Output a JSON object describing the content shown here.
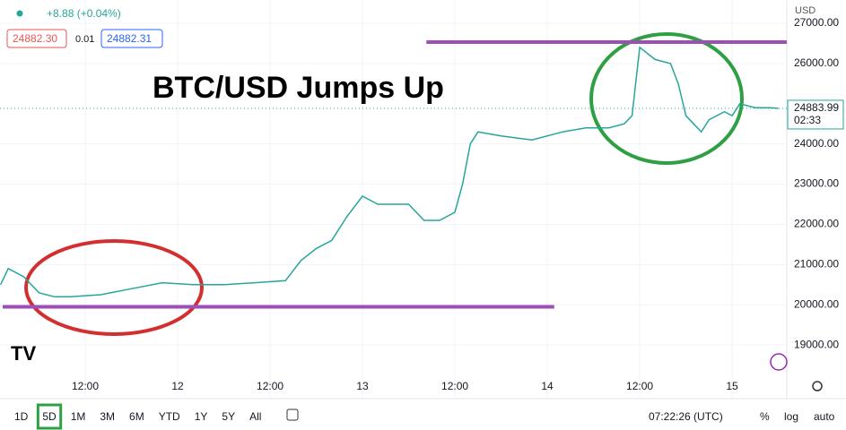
{
  "chart_data": {
    "type": "line",
    "annotation": "BTC/USD Jumps Up",
    "currency": "USD",
    "x": [
      1,
      2,
      4,
      6,
      8,
      10,
      14,
      18,
      22,
      26,
      30,
      34,
      38,
      40,
      42,
      44,
      46,
      48,
      50,
      54,
      56,
      58,
      60,
      61,
      62,
      63,
      66,
      70,
      74,
      77,
      80,
      82,
      83,
      84,
      86,
      88,
      89,
      90,
      91,
      92,
      93,
      95,
      96,
      97,
      99,
      101,
      102
    ],
    "series": [
      {
        "color": "#26a69a",
        "values": [
          20500,
          20900,
          20700,
          20300,
          20200,
          20200,
          20250,
          20400,
          20550,
          20500,
          20500,
          20550,
          20600,
          21100,
          21400,
          21600,
          22200,
          22700,
          22500,
          22500,
          22100,
          22100,
          22300,
          23000,
          24000,
          24300,
          24200,
          24100,
          24300,
          24400,
          24400,
          24500,
          24700,
          26400,
          26100,
          26000,
          25500,
          24700,
          24500,
          24300,
          24600,
          24800,
          24700,
          25000,
          24900,
          24900,
          24884
        ]
      }
    ],
    "xlim": [
      0.93,
      103.1
    ],
    "ylim": [
      17667,
      27578
    ],
    "xticks": [
      {
        "value": 12,
        "label": "12:00"
      },
      {
        "value": 24,
        "label": "12"
      },
      {
        "value": 36,
        "label": "12:00"
      },
      {
        "value": 48,
        "label": "13"
      },
      {
        "value": 60,
        "label": "12:00"
      },
      {
        "value": 72,
        "label": "14"
      },
      {
        "value": 84,
        "label": "12:00"
      },
      {
        "value": 96,
        "label": "15"
      }
    ],
    "yticks": [
      {
        "value": 19000,
        "label": "19000.00"
      },
      {
        "value": 20000,
        "label": "20000.00"
      },
      {
        "value": 21000,
        "label": "21000.00"
      },
      {
        "value": 22000,
        "label": "22000.00"
      },
      {
        "value": 23000,
        "label": "23000.00"
      },
      {
        "value": 24000,
        "label": "24000.00"
      },
      {
        "value": 26000,
        "label": "26000.00"
      },
      {
        "value": 27000,
        "label": "27000.00"
      }
    ],
    "grid": true,
    "hlines": [
      {
        "value": 26530,
        "x": [
          56.3,
          103.1
        ],
        "color": "#9c4fb5"
      },
      {
        "value": 19950,
        "x": [
          1.28,
          72.9
        ],
        "color": "#9c4fb5"
      }
    ],
    "last_price": {
      "value": 24883.99,
      "countdown": "02:33"
    }
  },
  "ui": {
    "change": "+8.88 (+0.04%)",
    "bid": "24882.30",
    "spread": "0.01",
    "ask": "24882.31",
    "ranges": [
      "1D",
      "5D",
      "1M",
      "3M",
      "6M",
      "YTD",
      "1Y",
      "5Y",
      "All"
    ],
    "clock": "07:22:26 (UTC)",
    "percent": "%",
    "log": "log",
    "auto": "auto"
  }
}
